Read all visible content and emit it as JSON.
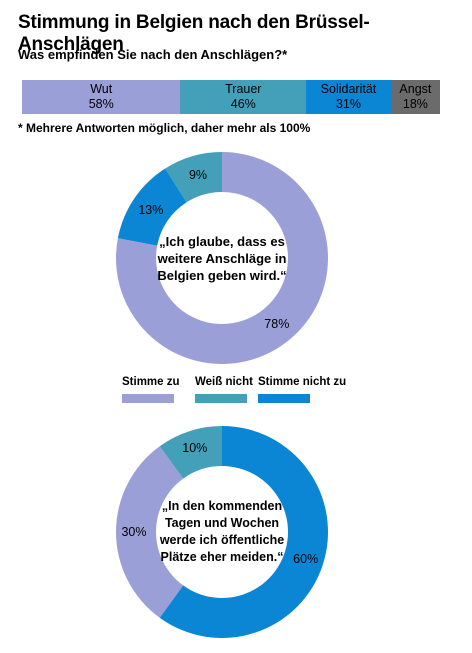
{
  "title": "Stimmung in Belgien nach den Brüssel-Anschlägen",
  "subtitle": "Was empfinden Sie nach den Anschlägen?*",
  "footnote": "* Mehrere Antworten möglich, daher mehr als 100%",
  "legend": [
    {
      "label": "Stimme zu",
      "color": "#9b9fd7"
    },
    {
      "label": "Weiß nicht",
      "color": "#44a0b8"
    },
    {
      "label": "Stimme nicht zu",
      "color": "#0a86d4"
    }
  ],
  "chart_data": [
    {
      "type": "bar",
      "stacked": true,
      "categories": [
        "Wut",
        "Trauer",
        "Solidarität",
        "Angst"
      ],
      "values": [
        58,
        46,
        31,
        18
      ],
      "value_labels": [
        "58%",
        "46%",
        "31%",
        "18%"
      ],
      "colors": [
        "#9b9fd7",
        "#44a0b8",
        "#0a86d4",
        "#6b6b6b"
      ],
      "title": "Was empfinden Sie nach den Anschlägen?*"
    },
    {
      "type": "pie",
      "donut": true,
      "title": "„Ich glaube, dass es weitere Anschläge in Belgien geben wird.“",
      "categories": [
        "Stimme zu",
        "Stimme nicht zu",
        "Weiß nicht"
      ],
      "values": [
        78,
        13,
        9
      ],
      "value_labels": [
        "78%",
        "13%",
        "9%"
      ],
      "colors": [
        "#9b9fd7",
        "#0a86d4",
        "#44a0b8"
      ]
    },
    {
      "type": "pie",
      "donut": true,
      "title": "„In den kommenden Tagen und Wochen werde ich öffentliche Plätze eher meiden.“",
      "categories": [
        "Stimme nicht zu",
        "Stimme zu",
        "Weiß nicht"
      ],
      "values": [
        60,
        30,
        10
      ],
      "value_labels": [
        "60%",
        "30%",
        "10%"
      ],
      "colors": [
        "#0a86d4",
        "#9b9fd7",
        "#44a0b8"
      ]
    }
  ]
}
